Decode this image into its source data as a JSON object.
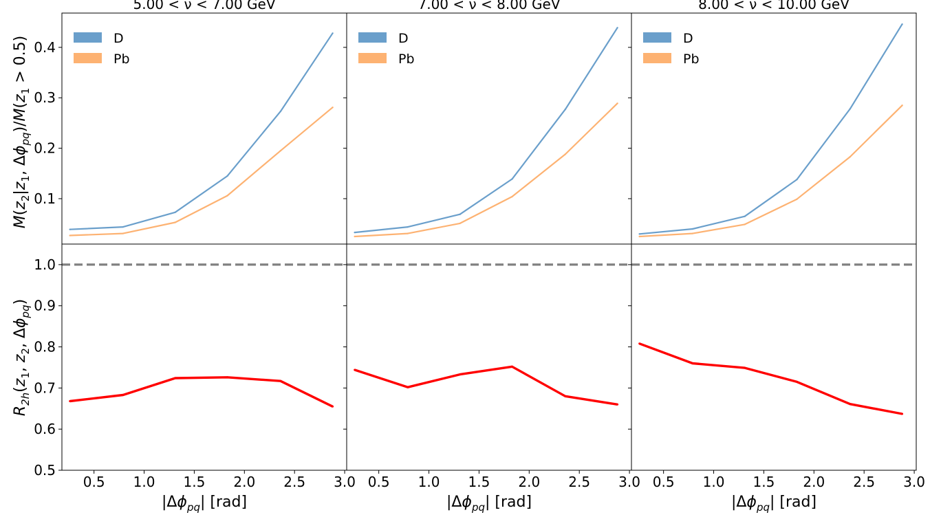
{
  "chart_data": {
    "type": "line",
    "x_label": "|Δϕ_pq|  [rad]",
    "top_y_label": "M(z₂|z₁, Δϕ_pq)/M(z₁ > 0.5)",
    "bottom_y_label": "R_2h(z₁, z₂, Δϕ_pq)",
    "x_ticks": [
      "0.5",
      "1.0",
      "1.5",
      "2.0",
      "2.5",
      "3.0"
    ],
    "x_tick_values": [
      0.5,
      1.0,
      1.5,
      2.0,
      2.5,
      3.0
    ],
    "top_y_ticks": [
      "0.1",
      "0.2",
      "0.3",
      "0.4"
    ],
    "top_y_tick_values": [
      0.1,
      0.2,
      0.3,
      0.4
    ],
    "bottom_y_ticks": [
      "0.5",
      "0.6",
      "0.7",
      "0.8",
      "0.9",
      "1.0"
    ],
    "bottom_y_tick_values": [
      0.5,
      0.6,
      0.7,
      0.8,
      0.9,
      1.0
    ],
    "xlim": [
      0.18,
      3.02
    ],
    "top_ylim": [
      0.01,
      0.468
    ],
    "bottom_ylim": [
      0.5,
      1.05
    ],
    "reference_line": 1.0,
    "legend": {
      "placement": "top-left",
      "entries": [
        "D",
        "Pb"
      ]
    },
    "colors": {
      "D": "#6a9fcb",
      "Pb": "#fdb272",
      "ratio": "#ff0000",
      "reference": "#808080"
    },
    "x": [
      0.26,
      0.79,
      1.31,
      1.83,
      2.36,
      2.88
    ],
    "panels": [
      {
        "title": "5.00 < ν < 7.00 GeV",
        "D": [
          0.039,
          0.044,
          0.073,
          0.145,
          0.273,
          0.428
        ],
        "Pb": [
          0.027,
          0.031,
          0.053,
          0.106,
          0.195,
          0.281
        ],
        "R2h": [
          0.668,
          0.683,
          0.724,
          0.726,
          0.717,
          0.655
        ]
      },
      {
        "title": "7.00 < ν < 8.00 GeV",
        "D": [
          0.033,
          0.044,
          0.069,
          0.139,
          0.277,
          0.439
        ],
        "Pb": [
          0.025,
          0.031,
          0.051,
          0.104,
          0.188,
          0.289
        ],
        "R2h": [
          0.744,
          0.702,
          0.733,
          0.752,
          0.68,
          0.66
        ]
      },
      {
        "title": "8.00 < ν < 10.00 GeV",
        "D": [
          0.03,
          0.04,
          0.065,
          0.138,
          0.278,
          0.446
        ],
        "Pb": [
          0.025,
          0.031,
          0.049,
          0.099,
          0.183,
          0.285
        ],
        "R2h": [
          0.808,
          0.76,
          0.749,
          0.715,
          0.661,
          0.637
        ]
      }
    ]
  }
}
